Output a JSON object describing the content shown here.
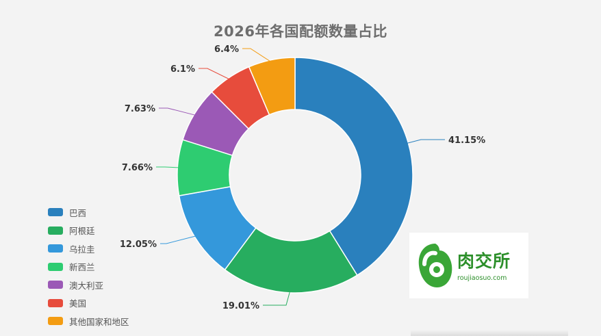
{
  "chart_data": {
    "type": "pie",
    "title": "2026年各国配额数量占比",
    "legend_position": "bottom-left",
    "donut": true,
    "slices": [
      {
        "label": "巴西",
        "value": 41.15,
        "value_label": "41.15%",
        "color": "#2a80bd"
      },
      {
        "label": "阿根廷",
        "value": 19.01,
        "value_label": "19.01%",
        "color": "#27ad5f"
      },
      {
        "label": "乌拉圭",
        "value": 12.05,
        "value_label": "12.05%",
        "color": "#3498db"
      },
      {
        "label": "新西兰",
        "value": 7.66,
        "value_label": "7.66%",
        "color": "#2ecc71"
      },
      {
        "label": "澳大利亚",
        "value": 7.63,
        "value_label": "7.63%",
        "color": "#9b59b6"
      },
      {
        "label": "美国",
        "value": 6.1,
        "value_label": "6.1%",
        "color": "#e74c3c"
      },
      {
        "label": "其他国家和地区",
        "value": 6.4,
        "value_label": "6.4%",
        "color": "#f39c12"
      }
    ]
  },
  "logo": {
    "name": "肉交所",
    "url": "roujiaosuo.com",
    "color": "#2c8f2a"
  }
}
